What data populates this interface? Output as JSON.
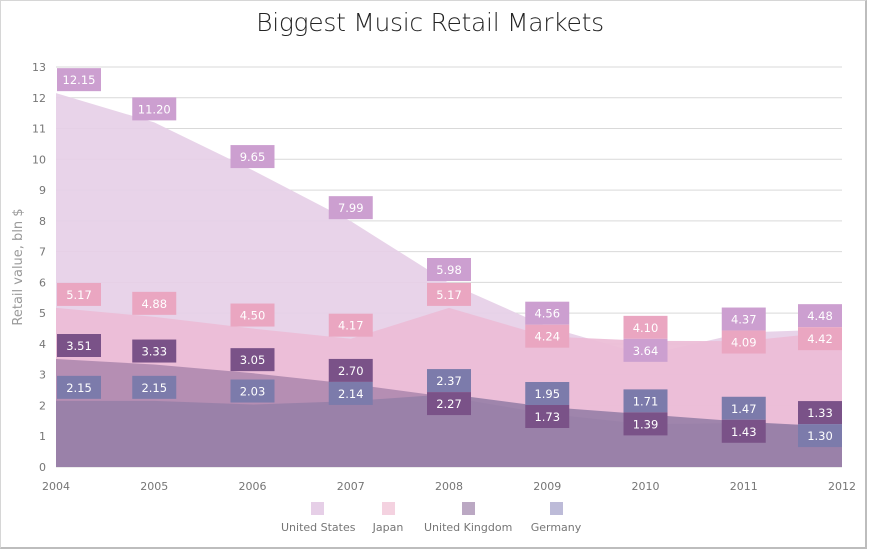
{
  "chart_data": {
    "type": "area",
    "title": "Biggest Music Retail Markets",
    "xlabel": "",
    "ylabel": "Retail value, bln $",
    "ylim": [
      0,
      13
    ],
    "y_ticks": [
      "0",
      "1",
      "2",
      "3",
      "4",
      "5",
      "6",
      "7",
      "8",
      "9",
      "10",
      "11",
      "12",
      "13"
    ],
    "grid": true,
    "legend_position": "bottom",
    "categories": [
      "2004",
      "2005",
      "2006",
      "2007",
      "2008",
      "2009",
      "2010",
      "2011",
      "2012"
    ],
    "series": [
      {
        "name": "United States",
        "values": [
          12.15,
          11.2,
          9.65,
          7.99,
          5.98,
          4.56,
          3.64,
          4.37,
          4.48
        ],
        "fill": "#e6cfe7",
        "label_color": "#cc9fd0",
        "legend_color": "#e6cfe7"
      },
      {
        "name": "Japan",
        "values": [
          5.17,
          4.88,
          4.5,
          4.17,
          5.17,
          4.24,
          4.1,
          4.09,
          4.42
        ],
        "fill": "#ebbcd6",
        "label_color": "#eaa6c1",
        "legend_color": "#f4d2e0"
      },
      {
        "name": "United Kingdom",
        "values": [
          3.51,
          3.33,
          3.05,
          2.7,
          2.27,
          1.73,
          1.39,
          1.43,
          1.33
        ],
        "fill": "#b08ab0",
        "label_color": "#7a5288",
        "legend_color": "#bba8c3"
      },
      {
        "name": "Germany",
        "values": [
          2.15,
          2.15,
          2.03,
          2.14,
          2.37,
          1.95,
          1.71,
          1.47,
          1.3
        ],
        "fill": "#9880a8",
        "label_color": "#7c7bab",
        "legend_color": "#bdbbd8"
      }
    ]
  },
  "title": "Biggest Music Retail Markets",
  "legend": {
    "items": [
      {
        "label": "United States"
      },
      {
        "label": "Japan"
      },
      {
        "label": "United Kingdom"
      },
      {
        "label": "Germany"
      }
    ]
  }
}
